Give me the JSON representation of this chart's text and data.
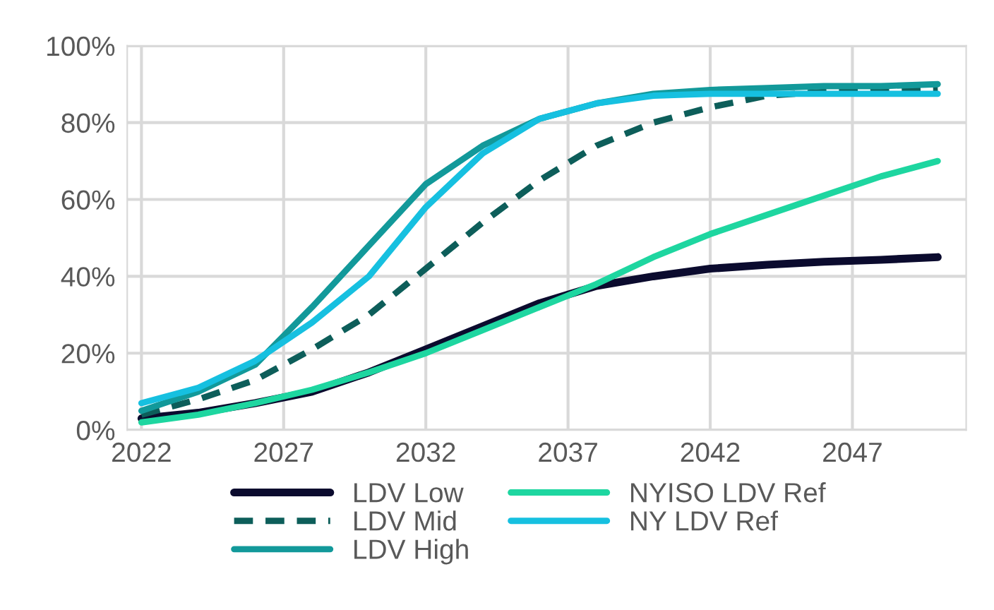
{
  "chart_data": {
    "type": "line",
    "x": [
      2022,
      2024,
      2026,
      2028,
      2030,
      2032,
      2034,
      2036,
      2038,
      2040,
      2042,
      2044,
      2046,
      2048,
      2050
    ],
    "series": [
      {
        "name": "LDV Low",
        "color": "#0b0b2e",
        "values": [
          3,
          4.5,
          7,
          10,
          15,
          21,
          27,
          33,
          37.5,
          40,
          42,
          43,
          43.8,
          44.3,
          45
        ]
      },
      {
        "name": "LDV Mid",
        "color": "#0d5e5a",
        "line_style": "dashed",
        "values": [
          4,
          8,
          13,
          21,
          30,
          42,
          54,
          65,
          74,
          80,
          84,
          87,
          88,
          88.5,
          89
        ]
      },
      {
        "name": "LDV High",
        "color": "#12999a",
        "values": [
          5,
          10,
          17,
          32,
          48,
          64,
          74,
          81,
          85,
          87.5,
          88.5,
          89,
          89.5,
          89.5,
          90
        ]
      },
      {
        "name": "NYISO LDV Ref",
        "color": "#1ed6a0",
        "values": [
          2,
          4,
          7,
          10.5,
          15,
          20,
          26,
          32,
          38,
          45,
          51,
          56,
          61,
          66,
          70
        ]
      },
      {
        "name": "NY LDV Ref",
        "color": "#16c0e0",
        "values": [
          7,
          11,
          18,
          28,
          40,
          58,
          72,
          81,
          85,
          87,
          87.5,
          87.5,
          87.5,
          87.5,
          87.5
        ]
      }
    ],
    "xlim": [
      2021.5,
      2051
    ],
    "xticks": [
      2022,
      2027,
      2032,
      2037,
      2042,
      2047
    ],
    "ylim": [
      0,
      100
    ],
    "yticks": [
      {
        "value": 0,
        "label": "0%"
      },
      {
        "value": 20,
        "label": "20%"
      },
      {
        "value": 40,
        "label": "40%"
      },
      {
        "value": 60,
        "label": "60%"
      },
      {
        "value": 80,
        "label": "80%"
      },
      {
        "value": 100,
        "label": "100%"
      }
    ],
    "grid": true,
    "legend": "bottom",
    "line_style": "solid"
  }
}
